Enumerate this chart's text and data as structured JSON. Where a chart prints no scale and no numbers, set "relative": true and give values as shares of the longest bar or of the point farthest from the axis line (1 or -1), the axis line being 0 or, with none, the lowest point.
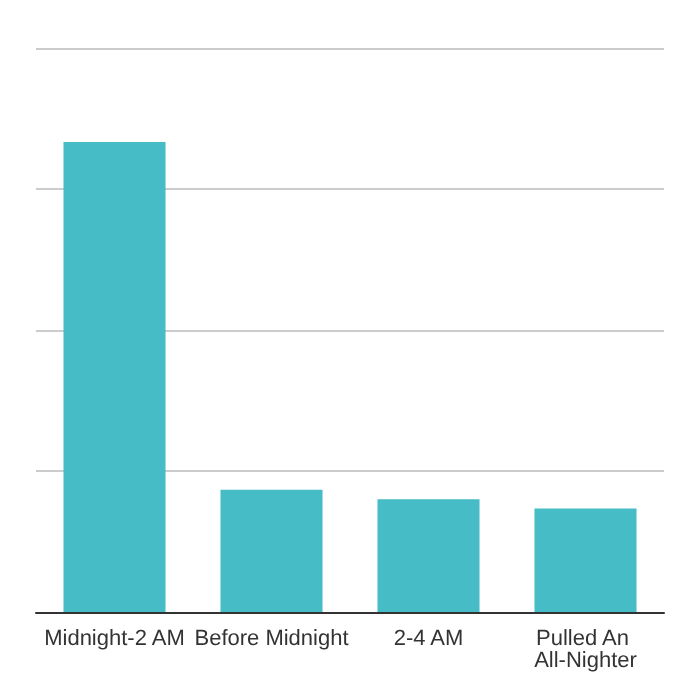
{
  "chart_data": {
    "type": "bar",
    "relative": true,
    "categories": [
      "Midnight-2 AM",
      "Before Midnight",
      "2-4 AM",
      "Pulled An All-Nighter"
    ],
    "values": [
      1,
      0.26,
      0.24,
      0.22
    ],
    "color": "#46bdc6",
    "grid": "y"
  }
}
